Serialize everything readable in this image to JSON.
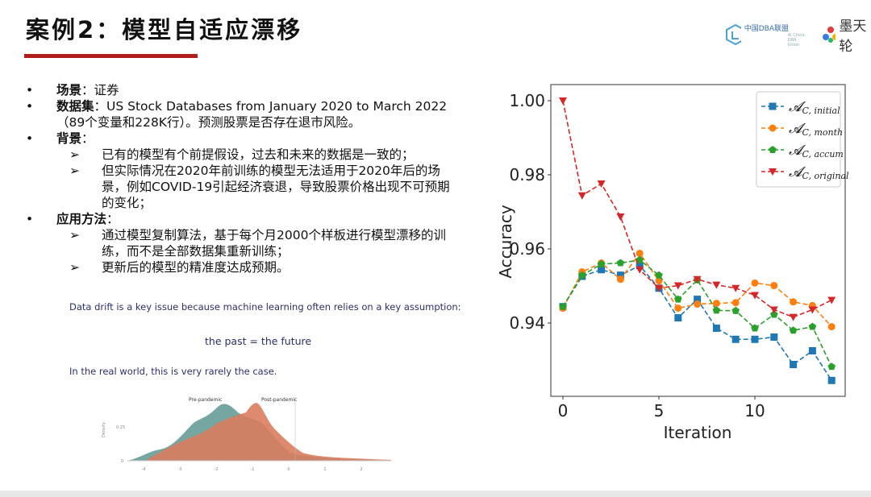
{
  "title": "案例2：模型自适应漂移",
  "logos": {
    "dba": "中国DBA联盟",
    "dba_sub": "AI China DBA Union",
    "motianlun": "墨天轮"
  },
  "bullets": [
    {
      "key": "场景",
      "text": "：证券"
    },
    {
      "key": "数据集",
      "text": "：US Stock Databases from January 2020 to March 2022（89个变量和228K行）。预测股票是否存在退市风险。"
    },
    {
      "key": "背景",
      "text": "：",
      "subs": [
        "已有的模型有个前提假设，过去和未来的数据是一致的；",
        "但实际情况在2020年前训练的模型无法适用于2020年后的场景，例如COVID-19引起经济衰退，导致股票价格出现不可预期的变化；"
      ]
    },
    {
      "key": "应用方法",
      "text": "：",
      "subs": [
        "通过模型复制算法，基于每个月2000个样板进行模型漂移的训练，而不是全部数据集重新训练；",
        "更新后的模型的精准度达成预期。"
      ]
    }
  ],
  "drift": {
    "line1": "Data drift is a key issue because machine learning often relies on a key assumption:",
    "line2": "the past = the future",
    "line3": "In the real world, this is very rarely the case.",
    "pre": "Pre-pandemic",
    "post": "Post-pandemic",
    "ylabel": "Density",
    "ytick": "0.25",
    "ytick0": "0",
    "xticks": [
      "-4",
      "-3",
      "-2",
      "-1",
      "0",
      "1",
      "2"
    ]
  },
  "chart_data": {
    "type": "line",
    "xlabel": "Iteration",
    "ylabel": "Accuracy",
    "xlim": [
      -0.5,
      15.0
    ],
    "ylim": [
      0.922,
      1.003
    ],
    "xticks": [
      0,
      5,
      10
    ],
    "yticks": [
      1.0,
      0.98,
      0.96,
      0.94
    ],
    "ytick_labels": [
      "1.00",
      "0.98",
      "0.96",
      "0.94"
    ],
    "xtick_labels": [
      "0",
      "5",
      "10"
    ],
    "legend": "top-right",
    "x": [
      0,
      1,
      2,
      3,
      4,
      5,
      6,
      7,
      8,
      9,
      10,
      11,
      12,
      13,
      14
    ],
    "series": [
      {
        "name": "𝓐C, initial",
        "label_main": "𝓐",
        "label_sub": "C, initial",
        "color": "#1f77b4",
        "marker": "square",
        "values": [
          0.9444,
          0.9526,
          0.9544,
          0.9529,
          0.9555,
          0.9494,
          0.9414,
          0.9464,
          0.9386,
          0.9356,
          0.9356,
          0.9362,
          0.9288,
          0.9325,
          0.9245
        ]
      },
      {
        "name": "𝓐C, month",
        "label_main": "𝓐",
        "label_sub": "C, month",
        "color": "#ff7f0e",
        "marker": "circle",
        "values": [
          0.944,
          0.9538,
          0.9562,
          0.9518,
          0.9588,
          0.9514,
          0.944,
          0.9451,
          0.9453,
          0.9455,
          0.9508,
          0.9501,
          0.9457,
          0.9447,
          0.939
        ]
      },
      {
        "name": "𝓐C, accum",
        "label_main": "𝓐",
        "label_sub": "C, accum",
        "color": "#2ca02c",
        "marker": "pentagon",
        "values": [
          0.9444,
          0.9529,
          0.9559,
          0.9562,
          0.957,
          0.9529,
          0.9464,
          0.9516,
          0.9434,
          0.9433,
          0.9386,
          0.9423,
          0.938,
          0.939,
          0.9282
        ]
      },
      {
        "name": "𝓐C, original",
        "label_main": "𝓐",
        "label_sub": "C, original",
        "color": "#d62728",
        "marker": "triangle-down",
        "values": [
          1.0,
          0.9744,
          0.9776,
          0.9687,
          0.9544,
          0.9494,
          0.9501,
          0.9518,
          0.9503,
          0.9494,
          0.9475,
          0.9436,
          0.9416,
          0.9436,
          0.9462
        ]
      }
    ]
  }
}
